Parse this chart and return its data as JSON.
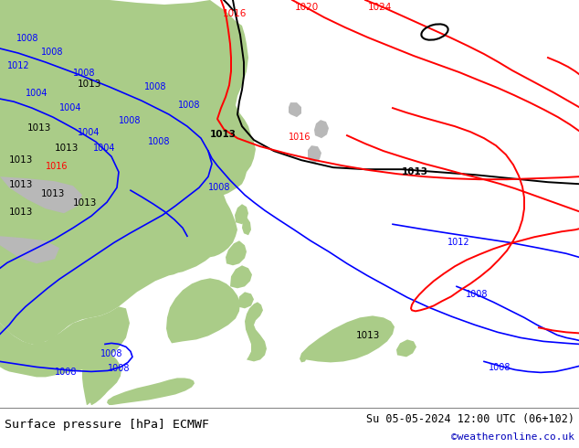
{
  "title_left": "Surface pressure [hPa] ECMWF",
  "title_right": "Su 05-05-2024 12:00 UTC (06+102)",
  "watermark": "©weatheronline.co.uk",
  "ocean_color": "#d8d8d8",
  "land_green_color": "#aacc88",
  "land_gray_color": "#b8b8b8",
  "sea_light": "#e4e4e4",
  "figsize": [
    6.34,
    4.9
  ],
  "dpi": 100
}
